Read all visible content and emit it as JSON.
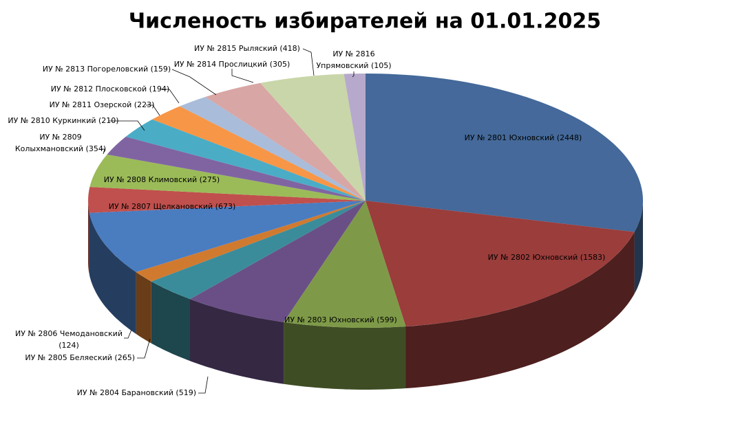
{
  "chart_data": {
    "type": "pie3d",
    "title": "Численость избирателей на 01.01.2025",
    "labels": [
      [
        "ИУ № 2801 Юхновский  (2448)"
      ],
      [
        "ИУ № 2802 Юхновский  (1583)"
      ],
      [
        "ИУ № 2803 Юхновский (599)"
      ],
      [
        "ИУ № 2804 Барановский  (519)"
      ],
      [
        "ИУ № 2805 Беляеский (265)"
      ],
      [
        "ИУ  № 2806 Чемодановский",
        "(124)"
      ],
      [
        "ИУ № 2807 Щелкановский (673)"
      ],
      [
        "ИУ № 2808 Климовский (275)"
      ],
      [
        "ИУ № 2809",
        "Колыхмановский (354)"
      ],
      [
        "ИУ № 2810 Куркинкий  (210)"
      ],
      [
        "ИУ № 2811 Озерской (223)"
      ],
      [
        "ИУ № 2812 Плосковской (194)"
      ],
      [
        "ИУ № 2813 Погореловский (159)"
      ],
      [
        "ИУ № 2814 Прослицкий (305)"
      ],
      [
        "ИУ № 2815 Рыляский (418)"
      ],
      [
        "ИУ № 2816",
        "Упрямовский (105)"
      ]
    ],
    "values": [
      2448,
      1583,
      599,
      519,
      265,
      124,
      673,
      275,
      354,
      210,
      223,
      194,
      159,
      305,
      418,
      105
    ],
    "colors": [
      "#44699a",
      "#9a3d3b",
      "#7e9a48",
      "#6a4f86",
      "#3b8c9a",
      "#d07a30",
      "#4a7cc0",
      "#c0504d",
      "#9bbb59",
      "#8064a2",
      "#4bacc6",
      "#f79646",
      "#a9bcd9",
      "#d8a6a5",
      "#c9d6a9",
      "#b7a9cc"
    ]
  }
}
